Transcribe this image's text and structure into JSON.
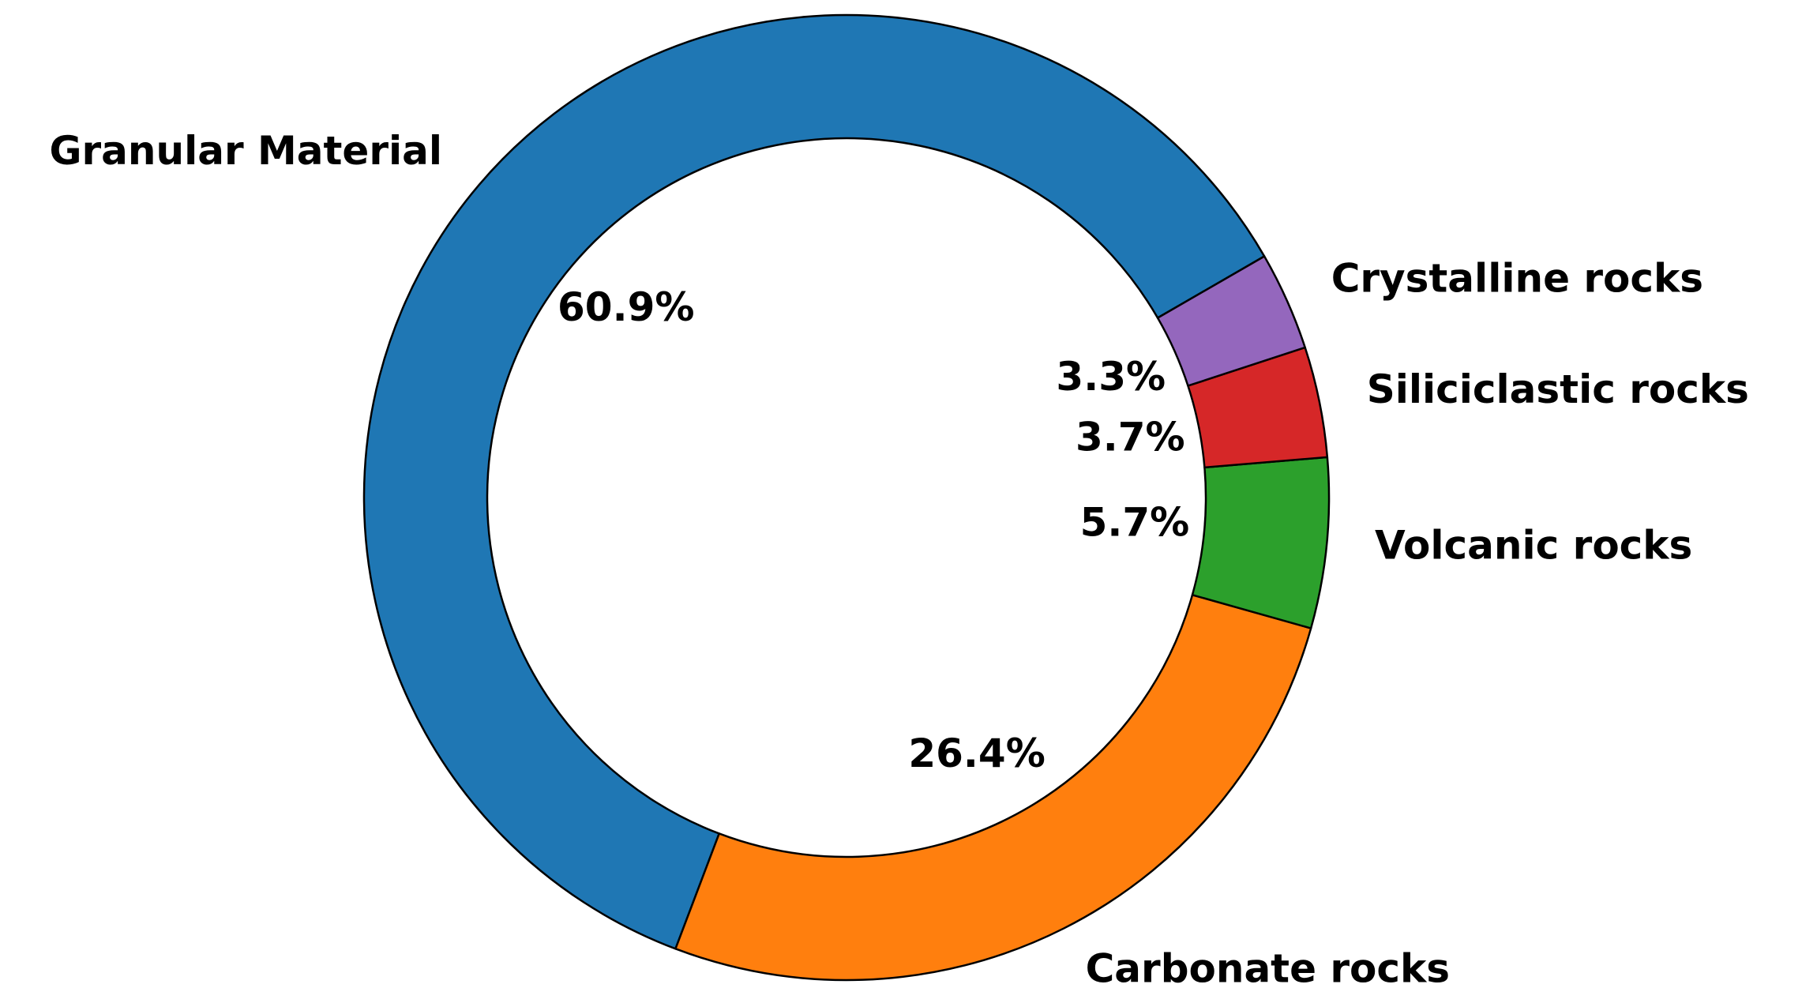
{
  "chart_data": {
    "type": "donut",
    "categories": [
      "Granular Material",
      "Carbonate rocks",
      "Volcanic rocks",
      "Siliciclastic rocks",
      "Crystalline rocks"
    ],
    "values": [
      60.9,
      26.4,
      5.7,
      3.7,
      3.3
    ],
    "value_labels": [
      "60.9%",
      "26.4%",
      "5.7%",
      "3.7%",
      "3.3%"
    ],
    "colors": [
      "#1f77b4",
      "#ff7f0e",
      "#2ca02c",
      "#d62728",
      "#9467bd"
    ]
  }
}
